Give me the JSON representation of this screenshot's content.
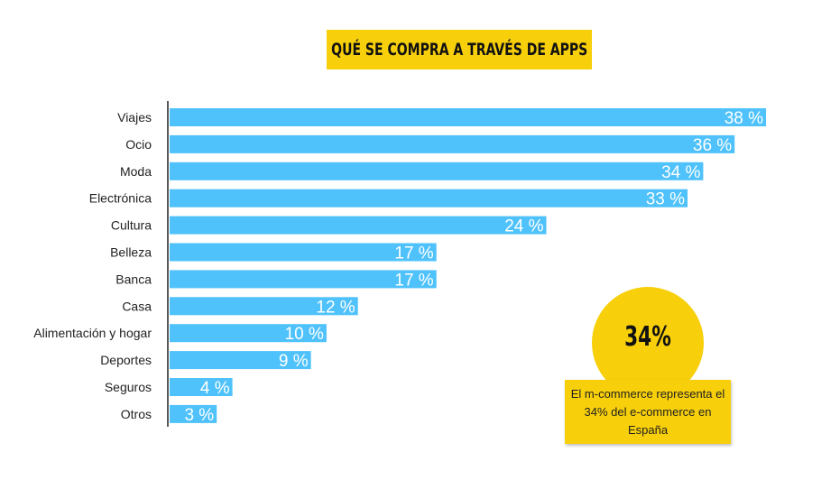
{
  "title": "QUÉ SE COMPRA A TRAVÉS DE APPS",
  "colors": {
    "bar": "#4fc2fb",
    "accent": "#f7cf0a",
    "axis": "#222222"
  },
  "chart_data": {
    "type": "bar",
    "orientation": "horizontal",
    "title": "QUÉ SE COMPRA A TRAVÉS DE APPS",
    "categories": [
      "Viajes",
      "Ocio",
      "Moda",
      "Electrónica",
      "Cultura",
      "Belleza",
      "Banca",
      "Casa",
      "Alimentación y hogar",
      "Deportes",
      "Seguros",
      "Otros"
    ],
    "values": [
      38,
      36,
      34,
      33,
      24,
      17,
      17,
      12,
      10,
      9,
      4,
      3
    ],
    "value_labels": [
      "38 %",
      "36 %",
      "34 %",
      "33 %",
      "24 %",
      "17 %",
      "17 %",
      "12 %",
      "10 %",
      "9 %",
      "4 %",
      "3 %"
    ],
    "unit": "%",
    "xlim": [
      0,
      38
    ],
    "grid": false,
    "xlabel": "",
    "ylabel": ""
  },
  "callout": {
    "value": "34%",
    "note": "El m-commerce representa el 34% del e-commerce en España"
  }
}
